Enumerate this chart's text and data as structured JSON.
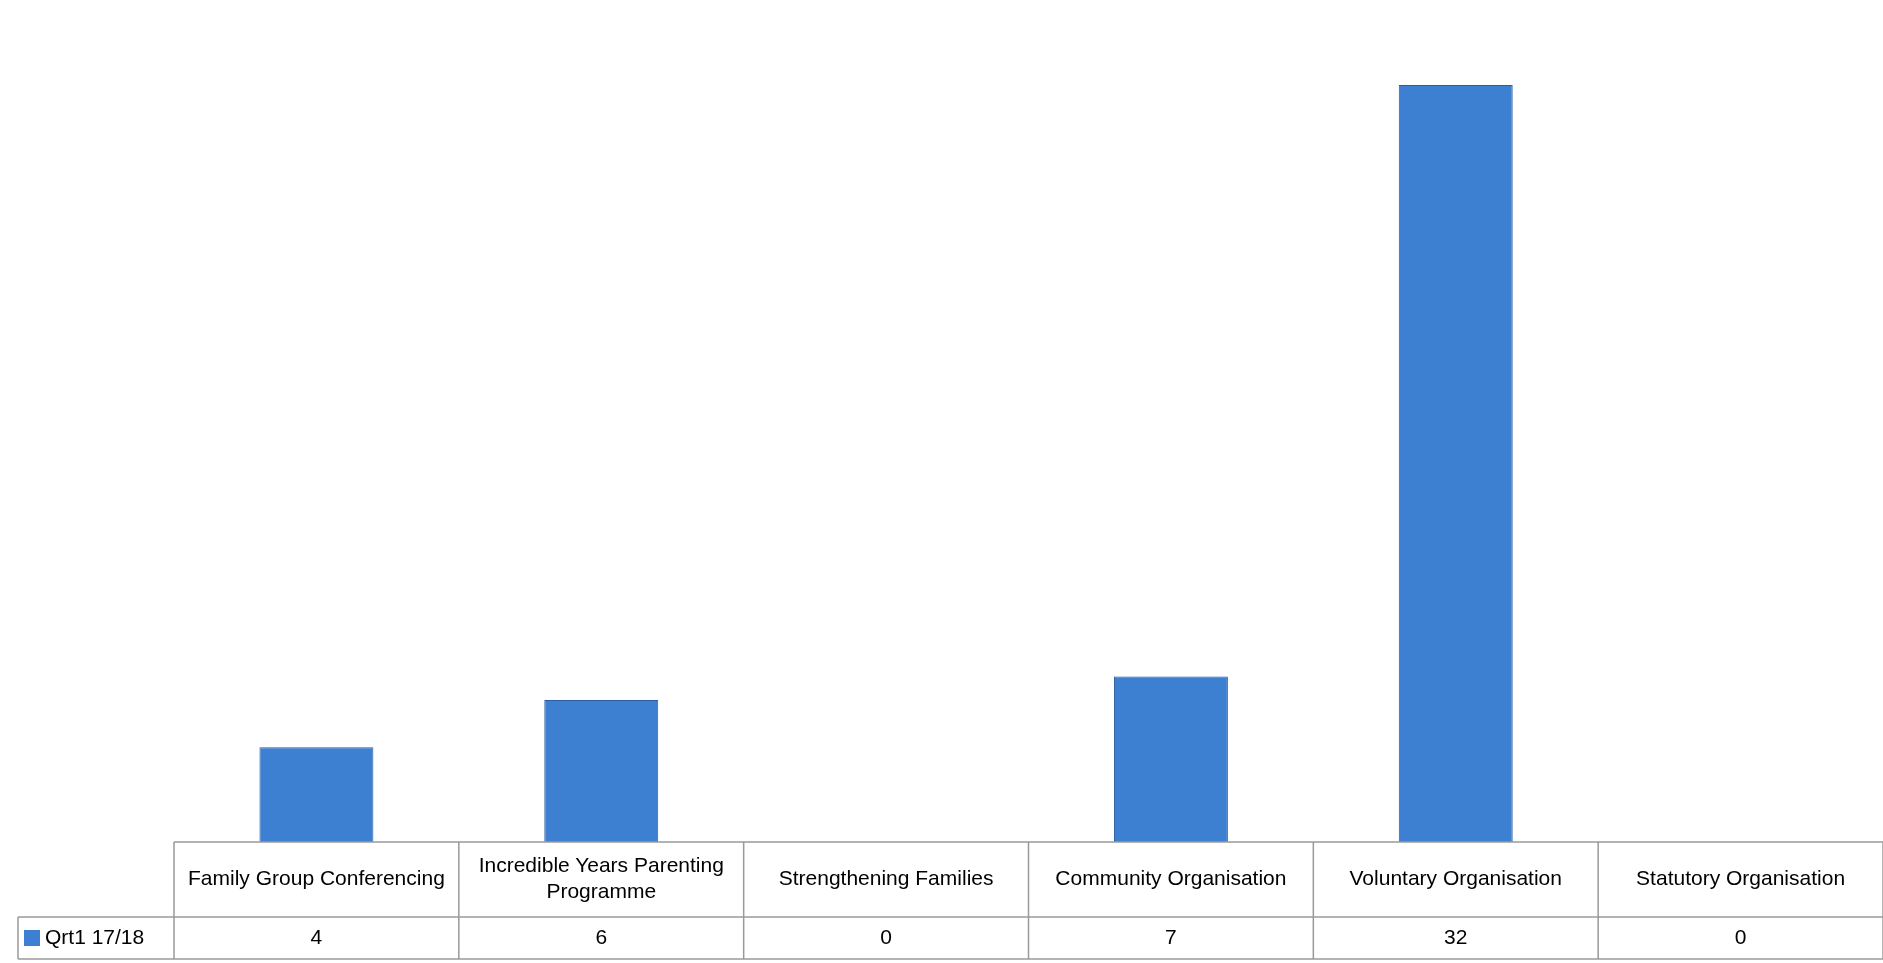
{
  "chart_data": {
    "type": "bar",
    "categories": [
      "Family Group Conferencing",
      "Incredible Years Parenting Programme",
      "Strengthening Families",
      "Community Organisation",
      "Voluntary Organisation",
      "Statutory Organisation"
    ],
    "series": [
      {
        "name": "Qrt1 17/18",
        "color": "#3d7fd1",
        "values": [
          4,
          6,
          0,
          7,
          32,
          0
        ]
      }
    ],
    "data_labels": true
  }
}
